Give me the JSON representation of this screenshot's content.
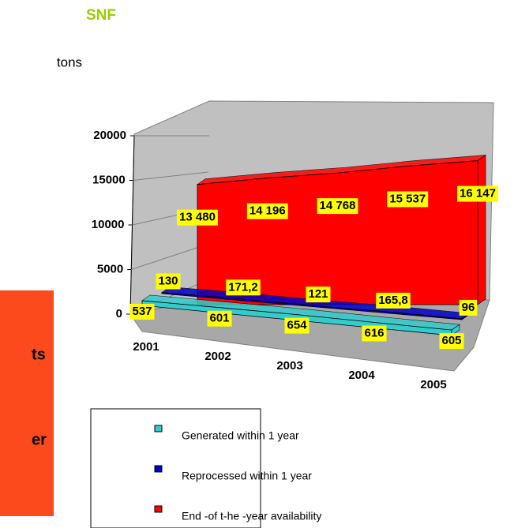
{
  "chart_data": {
    "type": "area3d",
    "title": "SNF",
    "y_label": "tons",
    "annotations": [
      "ts",
      "er"
    ],
    "categories": [
      "2001",
      "2002",
      "2003",
      "2004",
      "2005"
    ],
    "ylim": [
      0,
      20000
    ],
    "yticks": [
      0,
      5000,
      10000,
      15000,
      20000
    ],
    "series": [
      {
        "name": "Generated within 1 year",
        "color": "#33cccc",
        "values": [
          537,
          601,
          654,
          616,
          605
        ]
      },
      {
        "name": "Reprocessed within 1 year",
        "color": "#0000cc",
        "values": [
          130,
          171.2,
          121,
          165.8,
          96
        ],
        "value_labels": [
          "130",
          "171,2",
          "121",
          "165,8",
          "96"
        ]
      },
      {
        "name": "End -of t-he -year availability",
        "color": "#ff0000",
        "values": [
          13480,
          14196,
          14768,
          15537,
          16147
        ],
        "value_labels": [
          "13 480",
          "14 196",
          "14 768",
          "15 537",
          "16 147"
        ]
      }
    ]
  }
}
